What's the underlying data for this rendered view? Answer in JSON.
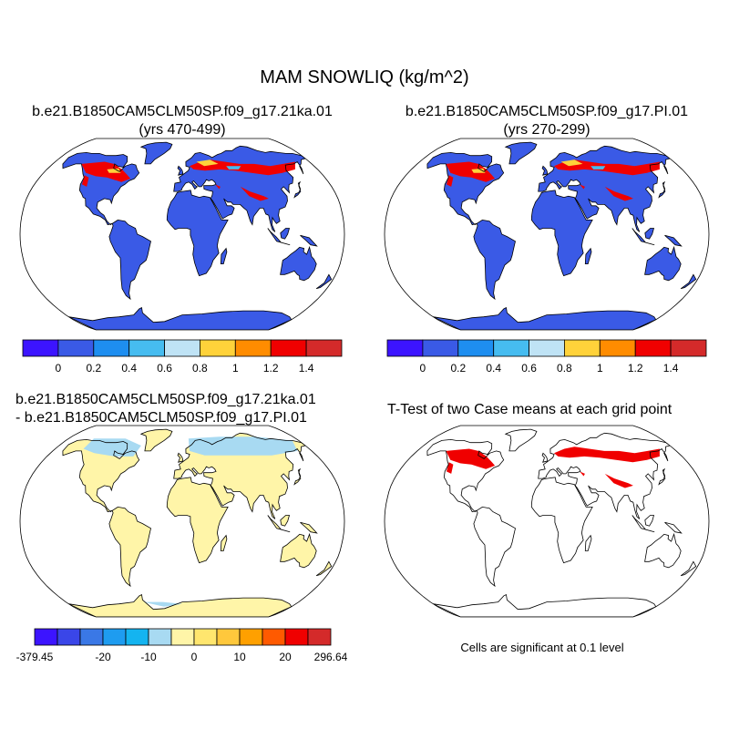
{
  "title": "MAM SNOWLIQ (kg/m^2)",
  "panels": [
    {
      "id": "case1",
      "title_lines": [
        "b.e21.B1850CAM5CLM50SP.f09_g17.21ka.01",
        "(yrs 470-499)"
      ],
      "colorbar": {
        "colors": [
          "#3c14ff",
          "#3a5ae6",
          "#1e8ef0",
          "#46bcf0",
          "#bfe3f5",
          "#ffd23a",
          "#ff8c00",
          "#f00000",
          "#d42a2a"
        ],
        "labels": [
          "0",
          "0.2",
          "0.4",
          "0.6",
          "0.8",
          "1",
          "1.2",
          "1.4"
        ]
      }
    },
    {
      "id": "case2",
      "title_lines": [
        "b.e21.B1850CAM5CLM50SP.f09_g17.PI.01",
        "(yrs 270-299)"
      ],
      "colorbar": {
        "colors": [
          "#3c14ff",
          "#3a5ae6",
          "#1e8ef0",
          "#46bcf0",
          "#bfe3f5",
          "#ffd23a",
          "#ff8c00",
          "#f00000",
          "#d42a2a"
        ],
        "labels": [
          "0",
          "0.2",
          "0.4",
          "0.6",
          "0.8",
          "1",
          "1.2",
          "1.4"
        ]
      }
    },
    {
      "id": "difference",
      "title_lines": [
        "b.e21.B1850CAM5CLM50SP.f09_g17.21ka.01",
        "- b.e21.B1850CAM5CLM50SP.f09_g17.PI.01"
      ],
      "colorbar": {
        "colors": [
          "#3c14ff",
          "#3a46e8",
          "#3a78e6",
          "#1e9cf0",
          "#14b4f0",
          "#a8daf2",
          "#fff5a8",
          "#ffe66e",
          "#ffc83c",
          "#ffa000",
          "#ff5a00",
          "#f00000",
          "#d42a2a"
        ],
        "labels": [
          "-379.45",
          "-20",
          "-10",
          "0",
          "10",
          "20",
          "296.64"
        ]
      }
    },
    {
      "id": "ttest",
      "title_lines": [
        "T-Test of two Case means at each grid point"
      ],
      "note": "Cells are significant at 0.1 level"
    }
  ],
  "map_colors": {
    "snow_low": "#3a5ae6",
    "snow_high": "#f00000",
    "diff_land": "#fff5a8",
    "diff_neg": "#a8daf2",
    "significant": "#f00000"
  }
}
